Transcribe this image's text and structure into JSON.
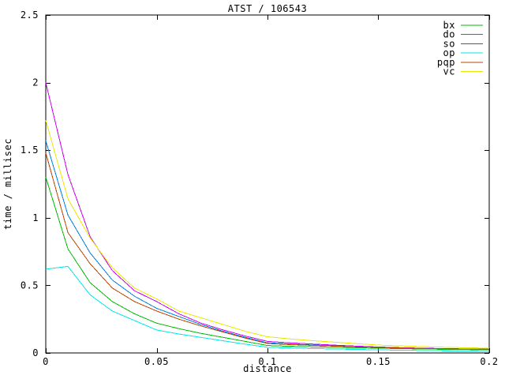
{
  "window": {
    "background": "#ffffff",
    "axis_color": "#000000",
    "text_color": "#000000"
  },
  "chart_data": {
    "type": "line",
    "title": "ATST / 106543",
    "xlabel": "distance",
    "ylabel": "time / millisec",
    "xlim": [
      0,
      0.2
    ],
    "ylim": [
      0,
      2.5
    ],
    "grid": false,
    "legend_position": "top-right-inside",
    "x_tick_values": [
      0,
      0.05,
      0.1,
      0.15,
      0.2
    ],
    "x_tick_labels": [
      "0",
      "0.05",
      "0.1",
      "0.15",
      "0.2"
    ],
    "y_tick_values": [
      0,
      0.5,
      1,
      1.5,
      2,
      2.5
    ],
    "y_tick_labels": [
      "0",
      "0.5",
      "1",
      "1.5",
      "2",
      "2.5"
    ],
    "x": [
      0,
      0.01,
      0.02,
      0.03,
      0.04,
      0.05,
      0.06,
      0.07,
      0.08,
      0.09,
      0.1,
      0.11,
      0.12,
      0.13,
      0.14,
      0.15,
      0.16,
      0.17,
      0.18,
      0.19,
      0.2
    ],
    "series": [
      {
        "name": "bx",
        "color": "#00bb00",
        "values": [
          1.3,
          0.77,
          0.52,
          0.38,
          0.29,
          0.22,
          0.18,
          0.145,
          0.115,
          0.085,
          0.055,
          0.049,
          0.045,
          0.041,
          0.038,
          0.035,
          0.032,
          0.029,
          0.027,
          0.025,
          0.023
        ]
      },
      {
        "name": "do",
        "color": "#0080dd",
        "values": [
          1.57,
          1.02,
          0.74,
          0.54,
          0.42,
          0.33,
          0.27,
          0.21,
          0.16,
          0.115,
          0.075,
          0.066,
          0.059,
          0.053,
          0.047,
          0.042,
          0.038,
          0.034,
          0.031,
          0.029,
          0.028
        ]
      },
      {
        "name": "so",
        "color": "#cc00ee",
        "values": [
          2.0,
          1.32,
          0.86,
          0.61,
          0.46,
          0.38,
          0.29,
          0.22,
          0.17,
          0.125,
          0.085,
          0.075,
          0.066,
          0.058,
          0.05,
          0.044,
          0.039,
          0.035,
          0.032,
          0.03,
          0.029
        ]
      },
      {
        "name": "op",
        "color": "#00e8e8",
        "values": [
          0.62,
          0.64,
          0.43,
          0.31,
          0.24,
          0.17,
          0.14,
          0.115,
          0.09,
          0.065,
          0.042,
          0.037,
          0.033,
          0.029,
          0.026,
          0.023,
          0.021,
          0.018,
          0.016,
          0.014,
          0.012
        ]
      },
      {
        "name": "pqp",
        "color": "#bb4400",
        "values": [
          1.48,
          0.89,
          0.66,
          0.48,
          0.38,
          0.31,
          0.25,
          0.2,
          0.155,
          0.11,
          0.07,
          0.062,
          0.056,
          0.05,
          0.045,
          0.041,
          0.037,
          0.034,
          0.031,
          0.029,
          0.028
        ]
      },
      {
        "name": "vc",
        "color": "#e8e800",
        "values": [
          1.72,
          1.14,
          0.85,
          0.63,
          0.48,
          0.4,
          0.31,
          0.26,
          0.21,
          0.16,
          0.12,
          0.104,
          0.091,
          0.08,
          0.069,
          0.058,
          0.052,
          0.047,
          0.042,
          0.038,
          0.035
        ]
      }
    ]
  }
}
